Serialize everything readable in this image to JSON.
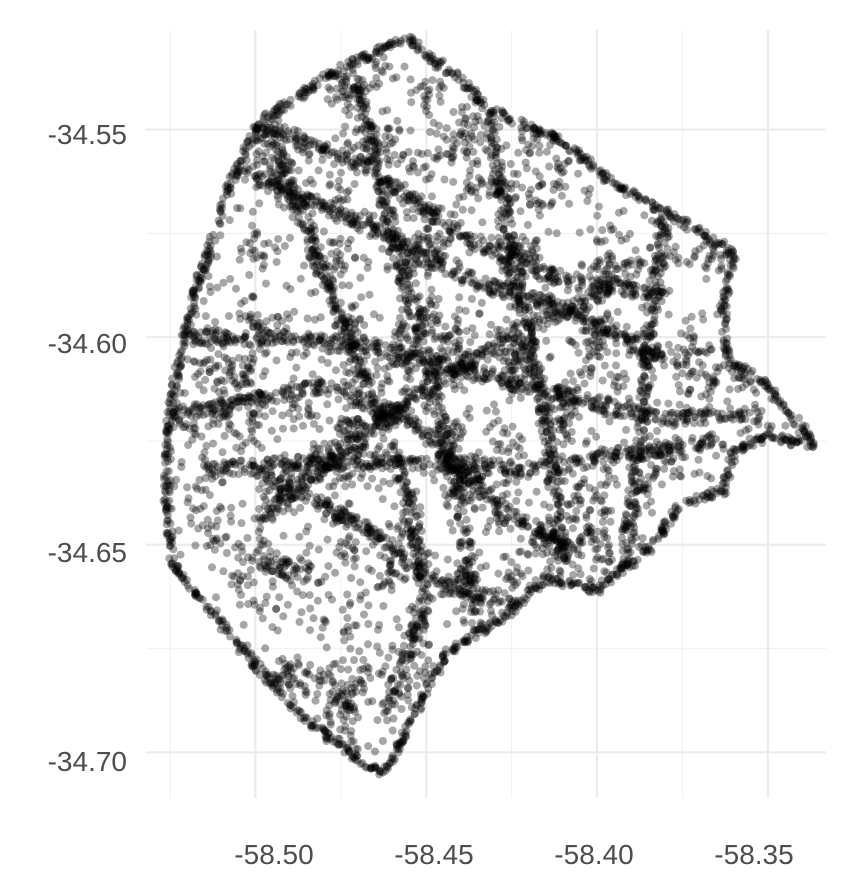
{
  "chart_data": {
    "type": "scatter",
    "title": "",
    "xlabel": "",
    "ylabel": "",
    "xlim": [
      -58.532,
      -58.333
    ],
    "ylim": [
      -34.711,
      -34.526
    ],
    "grid": true,
    "x_ticks": [
      -58.5,
      -58.45,
      -58.4,
      -58.35
    ],
    "x_tick_labels": [
      "-58.50",
      "-58.45",
      "-58.40",
      "-58.35"
    ],
    "y_ticks": [
      -34.55,
      -34.6,
      -34.65,
      -34.7
    ],
    "y_tick_labels": [
      "-34.55",
      "-34.60",
      "-34.65",
      "-34.70"
    ],
    "point_color": "#000000",
    "point_alpha": 0.35,
    "region_boundary": [
      [
        -58.455,
        -34.528
      ],
      [
        -58.475,
        -34.535
      ],
      [
        -58.5,
        -34.549
      ],
      [
        -58.508,
        -34.565
      ],
      [
        -58.518,
        -34.59
      ],
      [
        -58.525,
        -34.616
      ],
      [
        -58.526,
        -34.64
      ],
      [
        -58.524,
        -34.655
      ],
      [
        -58.504,
        -34.675
      ],
      [
        -58.488,
        -34.69
      ],
      [
        -58.47,
        -34.702
      ],
      [
        -58.462,
        -34.705
      ],
      [
        -58.458,
        -34.698
      ],
      [
        -58.453,
        -34.69
      ],
      [
        -58.444,
        -34.676
      ],
      [
        -58.428,
        -34.668
      ],
      [
        -58.415,
        -34.658
      ],
      [
        -58.4,
        -34.661
      ],
      [
        -58.385,
        -34.651
      ],
      [
        -58.375,
        -34.64
      ],
      [
        -58.363,
        -34.637
      ],
      [
        -58.36,
        -34.628
      ],
      [
        -58.35,
        -34.624
      ],
      [
        -58.336,
        -34.626
      ],
      [
        -58.35,
        -34.612
      ],
      [
        -58.362,
        -34.605
      ],
      [
        -58.363,
        -34.593
      ],
      [
        -58.36,
        -34.58
      ],
      [
        -58.375,
        -34.572
      ],
      [
        -58.395,
        -34.563
      ],
      [
        -58.41,
        -34.553
      ],
      [
        -58.432,
        -34.545
      ],
      [
        -58.441,
        -34.537
      ],
      [
        -58.45,
        -34.532
      ]
    ],
    "corridors": [
      [
        [
          -58.505,
          -34.56
        ],
        [
          -58.47,
          -34.572
        ],
        [
          -58.435,
          -34.587
        ],
        [
          -58.41,
          -34.593
        ],
        [
          -58.375,
          -34.608
        ]
      ],
      [
        [
          -58.505,
          -34.547
        ],
        [
          -58.47,
          -34.558
        ],
        [
          -58.44,
          -34.575
        ],
        [
          -58.415,
          -34.585
        ],
        [
          -58.38,
          -34.59
        ]
      ],
      [
        [
          -58.52,
          -34.6
        ],
        [
          -58.49,
          -34.6
        ],
        [
          -58.455,
          -34.604
        ],
        [
          -58.42,
          -34.612
        ],
        [
          -58.38,
          -34.62
        ],
        [
          -58.355,
          -34.618
        ]
      ],
      [
        [
          -58.5,
          -34.645
        ],
        [
          -58.475,
          -34.628
        ],
        [
          -58.45,
          -34.612
        ],
        [
          -58.425,
          -34.6
        ],
        [
          -58.395,
          -34.588
        ]
      ],
      [
        [
          -58.515,
          -34.632
        ],
        [
          -58.48,
          -34.63
        ],
        [
          -58.45,
          -34.63
        ],
        [
          -58.42,
          -34.632
        ],
        [
          -58.39,
          -34.628
        ],
        [
          -58.365,
          -34.625
        ]
      ],
      [
        [
          -58.5,
          -34.632
        ],
        [
          -58.47,
          -34.645
        ],
        [
          -58.445,
          -34.66
        ],
        [
          -58.42,
          -34.665
        ]
      ],
      [
        [
          -58.495,
          -34.552
        ],
        [
          -58.48,
          -34.585
        ],
        [
          -58.465,
          -34.615
        ],
        [
          -58.455,
          -34.64
        ],
        [
          -58.45,
          -34.665
        ],
        [
          -58.462,
          -34.69
        ]
      ],
      [
        [
          -58.47,
          -34.54
        ],
        [
          -58.46,
          -34.575
        ],
        [
          -58.45,
          -34.605
        ],
        [
          -58.44,
          -34.64
        ],
        [
          -58.435,
          -34.67
        ]
      ],
      [
        [
          -58.38,
          -34.57
        ],
        [
          -58.385,
          -34.6
        ],
        [
          -58.388,
          -34.63
        ],
        [
          -58.392,
          -34.655
        ]
      ],
      [
        [
          -58.432,
          -34.545
        ],
        [
          -58.425,
          -34.58
        ],
        [
          -58.415,
          -34.62
        ],
        [
          -58.41,
          -34.655
        ]
      ],
      [
        [
          -58.52,
          -34.618
        ],
        [
          -58.5,
          -34.615
        ],
        [
          -58.48,
          -34.612
        ],
        [
          -58.455,
          -34.62
        ],
        [
          -58.43,
          -34.64
        ],
        [
          -58.405,
          -34.652
        ]
      ]
    ],
    "n_points": 8000
  }
}
